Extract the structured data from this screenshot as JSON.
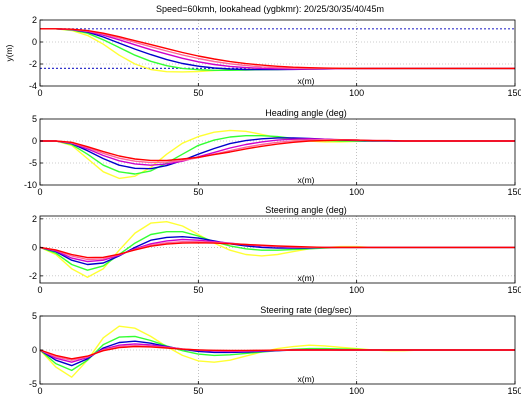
{
  "figure": {
    "title": "Speed=60kmh, lookahead (ygbkmr): 20/25/30/35/40/45m"
  },
  "chart_data": [
    {
      "type": "line",
      "title": "",
      "xlabel": "x(m)",
      "ylabel": "y(m)",
      "xlim": [
        0,
        150
      ],
      "ylim": [
        -4,
        2
      ],
      "xticks": [
        "0",
        "50",
        "100",
        "150"
      ],
      "yticks": [
        "2",
        "0",
        "-2",
        "-4"
      ],
      "grid": "dotted",
      "reference_lines": [
        {
          "y": 1.2,
          "color": "#3333cc",
          "style": "dotted"
        },
        {
          "y": -2.4,
          "color": "#3333cc",
          "style": "dotted"
        }
      ],
      "x": [
        0,
        5,
        10,
        15,
        20,
        25,
        30,
        35,
        40,
        45,
        50,
        55,
        60,
        65,
        70,
        75,
        80,
        85,
        90,
        95,
        100,
        105,
        110,
        115,
        120,
        125,
        130,
        135,
        140,
        145,
        150
      ],
      "series": [
        {
          "name": "20m",
          "color": "#ffff33",
          "values": [
            1.2,
            1.2,
            1.05,
            0.6,
            -0.2,
            -1.2,
            -2.0,
            -2.5,
            -2.7,
            -2.72,
            -2.68,
            -2.6,
            -2.55,
            -2.5,
            -2.47,
            -2.45,
            -2.43,
            -2.42,
            -2.41,
            -2.4,
            -2.4,
            -2.4,
            -2.4,
            -2.4,
            -2.4,
            -2.4,
            -2.4,
            -2.4,
            -2.4,
            -2.4,
            -2.4
          ]
        },
        {
          "name": "25m",
          "color": "#33ff33",
          "values": [
            1.2,
            1.2,
            1.1,
            0.8,
            0.2,
            -0.5,
            -1.2,
            -1.75,
            -2.15,
            -2.4,
            -2.52,
            -2.57,
            -2.57,
            -2.55,
            -2.52,
            -2.5,
            -2.47,
            -2.45,
            -2.43,
            -2.42,
            -2.41,
            -2.4,
            -2.4,
            -2.4,
            -2.4,
            -2.4,
            -2.4,
            -2.4,
            -2.4,
            -2.4,
            -2.4
          ]
        },
        {
          "name": "30m",
          "color": "#0000cc",
          "values": [
            1.2,
            1.2,
            1.12,
            0.9,
            0.45,
            -0.1,
            -0.65,
            -1.15,
            -1.6,
            -1.95,
            -2.2,
            -2.36,
            -2.45,
            -2.5,
            -2.51,
            -2.5,
            -2.49,
            -2.47,
            -2.45,
            -2.43,
            -2.42,
            -2.41,
            -2.4,
            -2.4,
            -2.4,
            -2.4,
            -2.4,
            -2.4,
            -2.4,
            -2.4,
            -2.4
          ]
        },
        {
          "name": "35m",
          "color": "#cc00cc",
          "values": [
            1.2,
            1.2,
            1.14,
            0.96,
            0.62,
            0.2,
            -0.25,
            -0.7,
            -1.1,
            -1.48,
            -1.8,
            -2.05,
            -2.22,
            -2.33,
            -2.4,
            -2.44,
            -2.45,
            -2.45,
            -2.44,
            -2.43,
            -2.42,
            -2.41,
            -2.41,
            -2.4,
            -2.4,
            -2.4,
            -2.4,
            -2.4,
            -2.4,
            -2.4,
            -2.4
          ]
        },
        {
          "name": "40m",
          "color": "#ff6699",
          "values": [
            1.2,
            1.2,
            1.15,
            1.0,
            0.72,
            0.36,
            -0.03,
            -0.43,
            -0.82,
            -1.18,
            -1.5,
            -1.77,
            -1.98,
            -2.14,
            -2.26,
            -2.34,
            -2.39,
            -2.41,
            -2.42,
            -2.42,
            -2.42,
            -2.41,
            -2.41,
            -2.4,
            -2.4,
            -2.4,
            -2.4,
            -2.4,
            -2.4,
            -2.4,
            -2.4
          ]
        },
        {
          "name": "45m",
          "color": "#ff0000",
          "values": [
            1.2,
            1.2,
            1.16,
            1.04,
            0.8,
            0.48,
            0.12,
            -0.24,
            -0.6,
            -0.95,
            -1.27,
            -1.55,
            -1.78,
            -1.96,
            -2.1,
            -2.21,
            -2.29,
            -2.34,
            -2.37,
            -2.39,
            -2.4,
            -2.4,
            -2.4,
            -2.4,
            -2.4,
            -2.4,
            -2.4,
            -2.4,
            -2.4,
            -2.4,
            -2.4
          ]
        }
      ]
    },
    {
      "type": "line",
      "title": "Heading angle (deg)",
      "xlabel": "x(m)",
      "ylabel": "",
      "xlim": [
        0,
        150
      ],
      "ylim": [
        -10,
        5
      ],
      "xticks": [
        "0",
        "50",
        "100",
        "150"
      ],
      "yticks": [
        "5",
        "0",
        "-5",
        "-10"
      ],
      "grid": "dotted",
      "reference_lines": [],
      "x": [
        0,
        5,
        10,
        15,
        20,
        25,
        30,
        35,
        40,
        45,
        50,
        55,
        60,
        65,
        70,
        75,
        80,
        85,
        90,
        95,
        100,
        105,
        110,
        115,
        120,
        125,
        130,
        135,
        140,
        145,
        150
      ],
      "series": [
        {
          "name": "20m",
          "color": "#ffff33",
          "values": [
            0,
            0,
            -1.0,
            -4.0,
            -7.0,
            -8.5,
            -8.0,
            -6.0,
            -3.0,
            -0.5,
            1.0,
            2.0,
            2.4,
            2.2,
            1.5,
            0.8,
            0.3,
            0,
            -0.2,
            -0.2,
            -0.1,
            0,
            0,
            0,
            0,
            0,
            0,
            0,
            0,
            0,
            0
          ]
        },
        {
          "name": "25m",
          "color": "#33ff33",
          "values": [
            0,
            0,
            -0.8,
            -3.0,
            -5.5,
            -7.0,
            -7.5,
            -6.8,
            -5.0,
            -3.0,
            -1.0,
            0.2,
            0.9,
            1.2,
            1.2,
            1.0,
            0.6,
            0.3,
            0.1,
            0,
            0,
            0,
            0,
            0,
            0,
            0,
            0,
            0,
            0,
            0,
            0
          ]
        },
        {
          "name": "30m",
          "color": "#0000cc",
          "values": [
            0,
            0,
            -0.6,
            -2.2,
            -4.0,
            -5.5,
            -6.2,
            -6.3,
            -5.6,
            -4.4,
            -3.0,
            -1.7,
            -0.6,
            0.1,
            0.5,
            0.7,
            0.7,
            0.6,
            0.4,
            0.2,
            0.1,
            0,
            0,
            0,
            0,
            0,
            0,
            0,
            0,
            0,
            0
          ]
        },
        {
          "name": "35m",
          "color": "#cc00cc",
          "values": [
            0,
            0,
            -0.5,
            -1.8,
            -3.3,
            -4.5,
            -5.2,
            -5.5,
            -5.2,
            -4.6,
            -3.6,
            -2.6,
            -1.6,
            -0.8,
            -0.2,
            0.2,
            0.4,
            0.5,
            0.4,
            0.3,
            0.2,
            0.1,
            0,
            0,
            0,
            0,
            0,
            0,
            0,
            0,
            0
          ]
        },
        {
          "name": "40m",
          "color": "#ff6699",
          "values": [
            0,
            0,
            -0.4,
            -1.5,
            -2.8,
            -3.9,
            -4.6,
            -4.9,
            -4.8,
            -4.4,
            -3.8,
            -3.0,
            -2.2,
            -1.4,
            -0.8,
            -0.3,
            0,
            0.2,
            0.3,
            0.3,
            0.2,
            0.1,
            0.1,
            0,
            0,
            0,
            0,
            0,
            0,
            0,
            0
          ]
        },
        {
          "name": "45m",
          "color": "#ff0000",
          "values": [
            0,
            0,
            -0.3,
            -1.3,
            -2.4,
            -3.4,
            -4.1,
            -4.4,
            -4.4,
            -4.1,
            -3.7,
            -3.1,
            -2.5,
            -1.8,
            -1.2,
            -0.7,
            -0.3,
            0,
            0.1,
            0.2,
            0.2,
            0.1,
            0.1,
            0,
            0,
            0,
            0,
            0,
            0,
            0,
            0
          ]
        }
      ]
    },
    {
      "type": "line",
      "title": "Steering angle (deg)",
      "xlabel": "x(m)",
      "ylabel": "",
      "xlim": [
        0,
        150
      ],
      "ylim": [
        -2.5,
        2.2
      ],
      "xticks": [
        "0",
        "50",
        "100",
        "150"
      ],
      "yticks": [
        "2",
        "0",
        "-2"
      ],
      "grid": "dotted",
      "reference_lines": [],
      "x": [
        0,
        5,
        10,
        15,
        20,
        25,
        30,
        35,
        40,
        45,
        50,
        55,
        60,
        65,
        70,
        75,
        80,
        85,
        90,
        95,
        100,
        105,
        110,
        115,
        120,
        125,
        130,
        135,
        140,
        145,
        150
      ],
      "series": [
        {
          "name": "20m",
          "color": "#ffff33",
          "values": [
            0,
            -0.5,
            -1.5,
            -2.1,
            -1.5,
            -0.2,
            1.0,
            1.7,
            1.8,
            1.5,
            0.9,
            0.3,
            -0.2,
            -0.5,
            -0.6,
            -0.5,
            -0.3,
            -0.1,
            0,
            0.05,
            0.05,
            0,
            0,
            0,
            0,
            0,
            0,
            0,
            0,
            0,
            0
          ]
        },
        {
          "name": "25m",
          "color": "#33ff33",
          "values": [
            0,
            -0.4,
            -1.2,
            -1.6,
            -1.3,
            -0.5,
            0.3,
            0.9,
            1.1,
            1.1,
            0.8,
            0.4,
            0.1,
            -0.1,
            -0.2,
            -0.2,
            -0.15,
            -0.1,
            -0.05,
            0,
            0,
            0,
            0,
            0,
            0,
            0,
            0,
            0,
            0,
            0,
            0
          ]
        },
        {
          "name": "30m",
          "color": "#0000cc",
          "values": [
            0,
            -0.3,
            -0.9,
            -1.2,
            -1.1,
            -0.6,
            0,
            0.5,
            0.7,
            0.75,
            0.65,
            0.45,
            0.25,
            0.1,
            0,
            -0.05,
            -0.05,
            -0.05,
            0,
            0,
            0,
            0,
            0,
            0,
            0,
            0,
            0,
            0,
            0,
            0,
            0
          ]
        },
        {
          "name": "35m",
          "color": "#cc00cc",
          "values": [
            0,
            -0.25,
            -0.75,
            -1.0,
            -0.9,
            -0.55,
            -0.1,
            0.25,
            0.45,
            0.55,
            0.5,
            0.4,
            0.3,
            0.18,
            0.1,
            0.05,
            0,
            0,
            0,
            0,
            0,
            0,
            0,
            0,
            0,
            0,
            0,
            0,
            0,
            0,
            0
          ]
        },
        {
          "name": "40m",
          "color": "#ff6699",
          "values": [
            0,
            -0.2,
            -0.6,
            -0.85,
            -0.8,
            -0.5,
            -0.15,
            0.15,
            0.32,
            0.4,
            0.4,
            0.35,
            0.27,
            0.2,
            0.13,
            0.07,
            0.03,
            0,
            0,
            0,
            0,
            0,
            0,
            0,
            0,
            0,
            0,
            0,
            0,
            0,
            0
          ]
        },
        {
          "name": "45m",
          "color": "#ff0000",
          "values": [
            0,
            -0.18,
            -0.5,
            -0.72,
            -0.7,
            -0.48,
            -0.18,
            0.08,
            0.23,
            0.3,
            0.32,
            0.3,
            0.25,
            0.2,
            0.15,
            0.1,
            0.06,
            0.03,
            0,
            0,
            0,
            0,
            0,
            0,
            0,
            0,
            0,
            0,
            0,
            0,
            0
          ]
        }
      ]
    },
    {
      "type": "line",
      "title": "Steering rate (deg/sec)",
      "xlabel": "x(m)",
      "ylabel": "",
      "xlim": [
        0,
        150
      ],
      "ylim": [
        -5,
        5
      ],
      "xticks": [
        "0",
        "50",
        "100",
        "150"
      ],
      "yticks": [
        "5",
        "0",
        "-5"
      ],
      "grid": "dotted",
      "reference_lines": [],
      "x": [
        0,
        5,
        10,
        15,
        20,
        25,
        30,
        35,
        40,
        45,
        50,
        55,
        60,
        65,
        70,
        75,
        80,
        85,
        90,
        95,
        100,
        105,
        110,
        115,
        120,
        125,
        130,
        135,
        140,
        145,
        150
      ],
      "series": [
        {
          "name": "20m",
          "color": "#ffff33",
          "values": [
            0,
            -2.5,
            -4.0,
            -1.5,
            1.8,
            3.5,
            3.2,
            2.0,
            0.5,
            -0.8,
            -1.6,
            -1.8,
            -1.5,
            -0.9,
            -0.3,
            0.2,
            0.5,
            0.7,
            0.6,
            0.4,
            0.2,
            0,
            -0.1,
            -0.1,
            0,
            0,
            0,
            0,
            0,
            0,
            0
          ]
        },
        {
          "name": "25m",
          "color": "#33ff33",
          "values": [
            0,
            -2.0,
            -3.0,
            -1.5,
            0.8,
            1.9,
            2.0,
            1.4,
            0.6,
            -0.1,
            -0.6,
            -0.8,
            -0.7,
            -0.5,
            -0.3,
            -0.1,
            0.1,
            0.2,
            0.2,
            0.15,
            0.1,
            0,
            0,
            0,
            0,
            0,
            0,
            0,
            0,
            0,
            0
          ]
        },
        {
          "name": "30m",
          "color": "#0000cc",
          "values": [
            0,
            -1.5,
            -2.3,
            -1.3,
            0.3,
            1.1,
            1.3,
            1.0,
            0.5,
            0.1,
            -0.2,
            -0.35,
            -0.35,
            -0.3,
            -0.2,
            -0.1,
            0,
            0.05,
            0.05,
            0,
            0,
            0,
            0,
            0,
            0,
            0,
            0,
            0,
            0,
            0,
            0
          ]
        },
        {
          "name": "35m",
          "color": "#cc00cc",
          "values": [
            0,
            -1.2,
            -1.8,
            -1.1,
            0.1,
            0.7,
            0.9,
            0.75,
            0.45,
            0.15,
            -0.05,
            -0.15,
            -0.2,
            -0.18,
            -0.12,
            -0.06,
            0,
            0,
            0,
            0,
            0,
            0,
            0,
            0,
            0,
            0,
            0,
            0,
            0,
            0,
            0
          ]
        },
        {
          "name": "40m",
          "color": "#ff6699",
          "values": [
            0,
            -1.0,
            -1.5,
            -1.0,
            0,
            0.5,
            0.65,
            0.55,
            0.35,
            0.15,
            0,
            -0.08,
            -0.1,
            -0.1,
            -0.07,
            -0.04,
            0,
            0,
            0,
            0,
            0,
            0,
            0,
            0,
            0,
            0,
            0,
            0,
            0,
            0,
            0
          ]
        },
        {
          "name": "45m",
          "color": "#ff0000",
          "values": [
            0,
            -0.8,
            -1.3,
            -0.9,
            -0.1,
            0.35,
            0.5,
            0.45,
            0.3,
            0.12,
            0.02,
            -0.04,
            -0.06,
            -0.06,
            -0.04,
            -0.02,
            0,
            0,
            0,
            0,
            0,
            0,
            0,
            0,
            0,
            0,
            0,
            0,
            0,
            0,
            0
          ]
        }
      ]
    }
  ]
}
